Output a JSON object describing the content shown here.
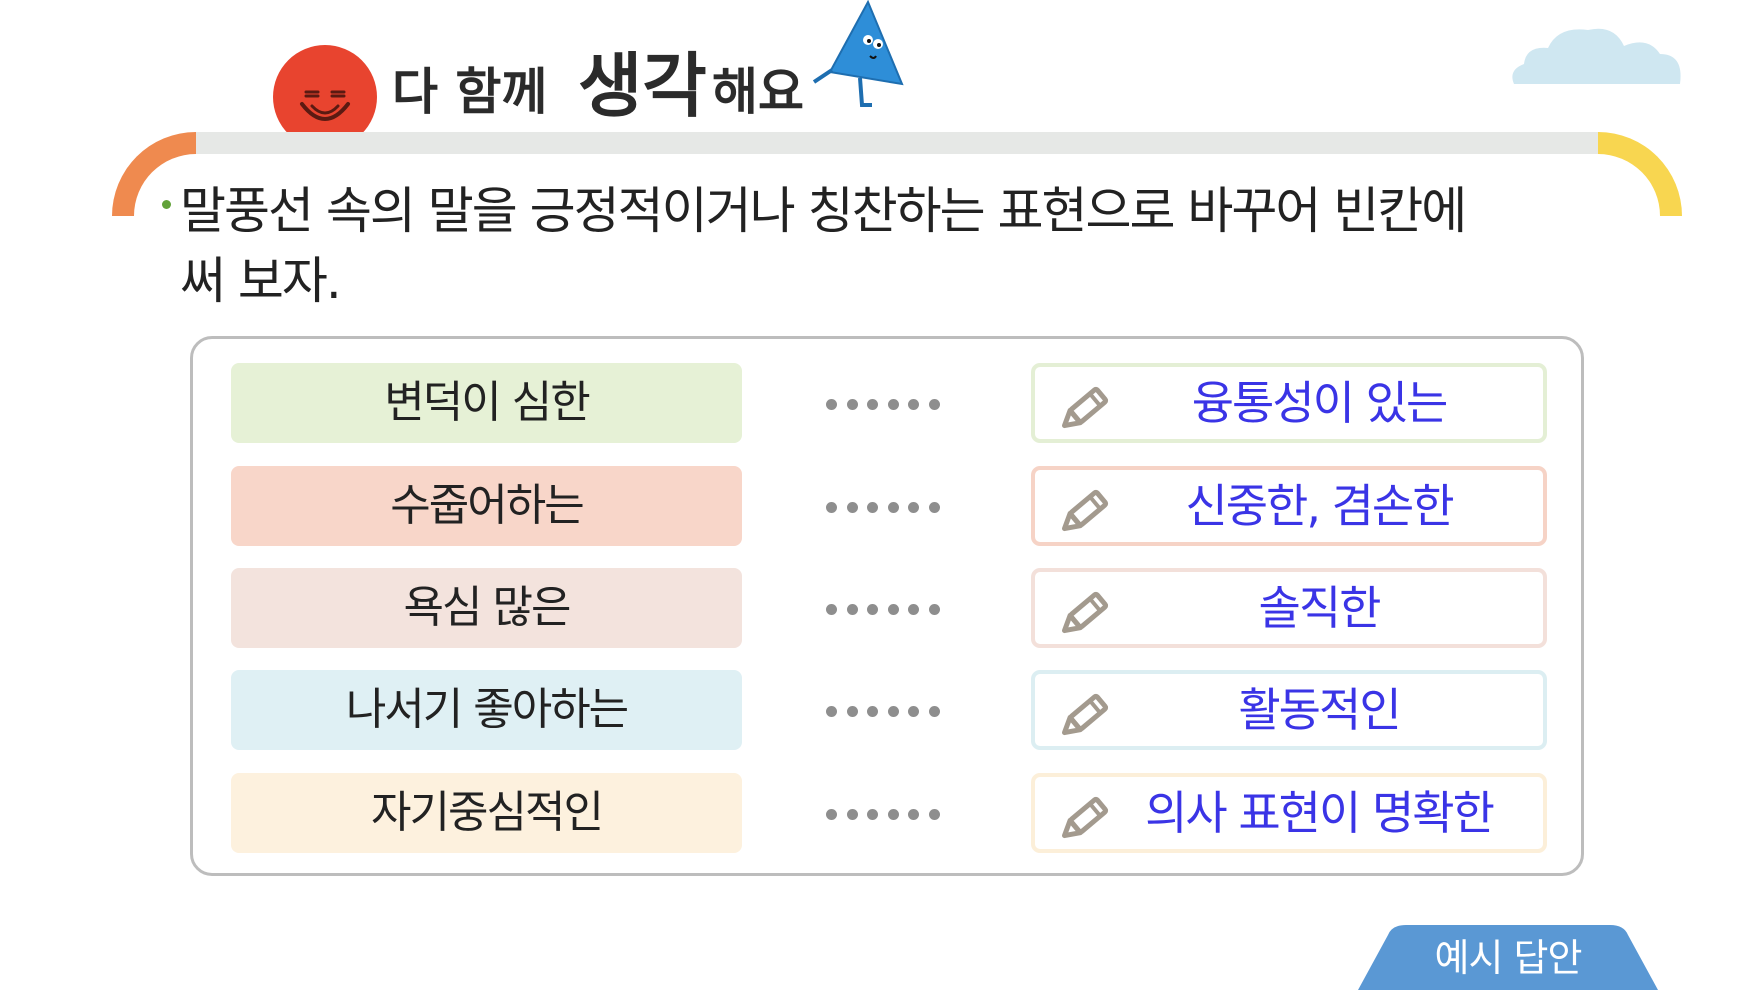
{
  "header": {
    "title_small_1": "다 함께",
    "title_big": "생각",
    "title_small_2": "해요"
  },
  "instruction": {
    "line1": "말풍선 속의 말을 긍정적이거나 칭찬하는 표현으로 바꾸어 빈칸에",
    "line2": "써 보자."
  },
  "rows": [
    {
      "original": "변덕이 심한",
      "answer": "융통성이 있는",
      "color": "#e6f1d6",
      "border": "#e4efd5"
    },
    {
      "original": "수줍어하는",
      "answer": "신중한, 겸손한",
      "color": "#f8d6c9",
      "border": "#f6d3c6"
    },
    {
      "original": "욕심 많은",
      "answer": "솔직한",
      "color": "#f3e3dd",
      "border": "#f3e0da"
    },
    {
      "original": "나서기 좋아하는",
      "answer": "활동적인",
      "color": "#dff0f4",
      "border": "#dceef2"
    },
    {
      "original": "자기중심적인",
      "answer": "의사 표현이 명확한",
      "color": "#fdf1de",
      "border": "#fcefd9"
    }
  ],
  "footer": {
    "example_label": "예시 답안"
  },
  "colors": {
    "accent_blue_text": "#3a34e6",
    "tab_blue": "#5a98d4",
    "bullet_green": "#62a23a"
  },
  "icons": [
    "red-face-character-icon",
    "blue-triangle-character-icon",
    "cloud-icon",
    "pencil-icon"
  ]
}
